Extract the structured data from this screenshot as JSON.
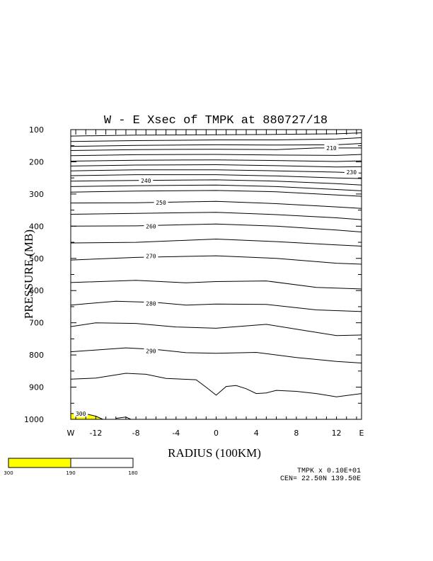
{
  "chart_data": {
    "type": "contour",
    "title": "W - E Xsec of TMPK at 880727/18",
    "xlabel": "RADIUS (100KM)",
    "ylabel": "PRESSURE (MB)",
    "xlim": [
      -14.5,
      14.5
    ],
    "ylim": [
      1000,
      100
    ],
    "x_ticks": [
      {
        "value": -14.5,
        "label": "W"
      },
      {
        "value": -12,
        "label": "-12"
      },
      {
        "value": -8,
        "label": "-8"
      },
      {
        "value": -4,
        "label": "-4"
      },
      {
        "value": 0,
        "label": "0"
      },
      {
        "value": 4,
        "label": "4"
      },
      {
        "value": 8,
        "label": "8"
      },
      {
        "value": 12,
        "label": "12"
      },
      {
        "value": 14.5,
        "label": "E"
      }
    ],
    "y_ticks": [
      100,
      200,
      300,
      400,
      500,
      600,
      700,
      800,
      900,
      1000
    ],
    "contours": [
      {
        "level": "",
        "points": [
          [
            -14.5,
            120
          ],
          [
            -8,
            117
          ],
          [
            0,
            116
          ],
          [
            6,
            115
          ],
          [
            12,
            113
          ],
          [
            14.5,
            110
          ]
        ]
      },
      {
        "level": "",
        "points": [
          [
            -14.5,
            137
          ],
          [
            -8,
            134
          ],
          [
            0,
            132
          ],
          [
            6,
            132
          ],
          [
            12,
            129
          ],
          [
            14.5,
            125
          ]
        ]
      },
      {
        "level": "",
        "points": [
          [
            -14.5,
            152
          ],
          [
            -8,
            149
          ],
          [
            0,
            147
          ],
          [
            6,
            148
          ],
          [
            12,
            147
          ],
          [
            14.5,
            143
          ]
        ]
      },
      {
        "level": "210",
        "label_at": [
          11.5,
          157
        ],
        "points": [
          [
            -14.5,
            165
          ],
          [
            -8,
            162
          ],
          [
            0,
            161
          ],
          [
            6,
            162
          ],
          [
            10,
            157
          ],
          [
            14.5,
            157
          ]
        ]
      },
      {
        "level": "",
        "points": [
          [
            -14.5,
            181
          ],
          [
            -8,
            178
          ],
          [
            0,
            177
          ],
          [
            6,
            179
          ],
          [
            12,
            180
          ],
          [
            14.5,
            177
          ]
        ]
      },
      {
        "level": "",
        "points": [
          [
            -14.5,
            198
          ],
          [
            -8,
            195
          ],
          [
            0,
            194
          ],
          [
            6,
            196
          ],
          [
            12,
            199
          ],
          [
            14.5,
            197
          ]
        ]
      },
      {
        "level": "",
        "points": [
          [
            -14.5,
            213
          ],
          [
            -8,
            210
          ],
          [
            0,
            209
          ],
          [
            6,
            212
          ],
          [
            12,
            216
          ],
          [
            14.5,
            215
          ]
        ]
      },
      {
        "level": "230",
        "label_at": [
          13.5,
          232
        ],
        "points": [
          [
            -14.5,
            228
          ],
          [
            -8,
            225
          ],
          [
            0,
            225
          ],
          [
            6,
            228
          ],
          [
            12,
            232
          ],
          [
            14.5,
            235
          ]
        ]
      },
      {
        "level": "",
        "points": [
          [
            -14.5,
            243
          ],
          [
            -8,
            240
          ],
          [
            0,
            240
          ],
          [
            6,
            244
          ],
          [
            12,
            250
          ],
          [
            14.5,
            252
          ]
        ]
      },
      {
        "level": "240",
        "label_at": [
          -7,
          258
        ],
        "points": [
          [
            -14.5,
            260
          ],
          [
            -8,
            258
          ],
          [
            0,
            256
          ],
          [
            6,
            260
          ],
          [
            12,
            268
          ],
          [
            14.5,
            272
          ]
        ]
      },
      {
        "level": "",
        "points": [
          [
            -14.5,
            277
          ],
          [
            -8,
            274
          ],
          [
            0,
            272
          ],
          [
            6,
            277
          ],
          [
            12,
            286
          ],
          [
            14.5,
            290
          ]
        ]
      },
      {
        "level": "",
        "points": [
          [
            -14.5,
            294
          ],
          [
            -8,
            291
          ],
          [
            0,
            289
          ],
          [
            6,
            293
          ],
          [
            12,
            303
          ],
          [
            14.5,
            307
          ]
        ]
      },
      {
        "level": "250",
        "label_at": [
          -5.5,
          327
        ],
        "points": [
          [
            -14.5,
            328
          ],
          [
            -8,
            327
          ],
          [
            0,
            323
          ],
          [
            6,
            330
          ],
          [
            12,
            340
          ],
          [
            14.5,
            345
          ]
        ]
      },
      {
        "level": "",
        "points": [
          [
            -14.5,
            363
          ],
          [
            -8,
            360
          ],
          [
            0,
            357
          ],
          [
            6,
            364
          ],
          [
            12,
            374
          ],
          [
            14.5,
            380
          ]
        ]
      },
      {
        "level": "260",
        "label_at": [
          -6.5,
          400
        ],
        "points": [
          [
            -14.5,
            400
          ],
          [
            -8,
            399
          ],
          [
            0,
            393
          ],
          [
            6,
            400
          ],
          [
            12,
            412
          ],
          [
            14.5,
            418
          ]
        ]
      },
      {
        "level": "",
        "points": [
          [
            -14.5,
            452
          ],
          [
            -8,
            450
          ],
          [
            0,
            440
          ],
          [
            6,
            448
          ],
          [
            12,
            458
          ],
          [
            14.5,
            462
          ]
        ]
      },
      {
        "level": "270",
        "label_at": [
          -6.5,
          493
        ],
        "points": [
          [
            -14.5,
            505
          ],
          [
            -8,
            497
          ],
          [
            0,
            492
          ],
          [
            6,
            500
          ],
          [
            12,
            515
          ],
          [
            14.5,
            518
          ]
        ]
      },
      {
        "level": "",
        "points": [
          [
            -14.5,
            575
          ],
          [
            -8,
            568
          ],
          [
            -3,
            576
          ],
          [
            0,
            572
          ],
          [
            5,
            570
          ],
          [
            10,
            590
          ],
          [
            14.5,
            595
          ]
        ]
      },
      {
        "level": "280",
        "label_at": [
          -6.5,
          640
        ],
        "points": [
          [
            -14.5,
            645
          ],
          [
            -10,
            633
          ],
          [
            -6,
            637
          ],
          [
            -3,
            645
          ],
          [
            0,
            642
          ],
          [
            5,
            643
          ],
          [
            10,
            660
          ],
          [
            14.5,
            665
          ]
        ]
      },
      {
        "level": "",
        "points": [
          [
            -14.5,
            712
          ],
          [
            -12,
            700
          ],
          [
            -8,
            702
          ],
          [
            -4,
            713
          ],
          [
            0,
            717
          ],
          [
            5,
            705
          ],
          [
            9,
            725
          ],
          [
            12,
            740
          ],
          [
            14.5,
            738
          ]
        ]
      },
      {
        "level": "290",
        "label_at": [
          -6.5,
          788
        ],
        "points": [
          [
            -14.5,
            790
          ],
          [
            -9,
            778
          ],
          [
            -6,
            783
          ],
          [
            -3,
            793
          ],
          [
            0,
            795
          ],
          [
            4,
            792
          ],
          [
            8,
            808
          ],
          [
            12,
            820
          ],
          [
            14.5,
            825
          ]
        ]
      },
      {
        "level": "",
        "points": [
          [
            -14.5,
            875
          ],
          [
            -12,
            872
          ],
          [
            -9,
            857
          ],
          [
            -7,
            860
          ],
          [
            -5,
            873
          ],
          [
            -2,
            877
          ],
          [
            -1,
            900
          ],
          [
            0,
            925
          ],
          [
            1,
            898
          ],
          [
            2,
            895
          ],
          [
            3,
            905
          ],
          [
            4,
            920
          ],
          [
            5,
            918
          ],
          [
            6,
            910
          ],
          [
            8,
            913
          ],
          [
            10,
            920
          ],
          [
            12,
            930
          ],
          [
            14.5,
            920
          ]
        ]
      },
      {
        "level": "300",
        "label_at": [
          -13.5,
          982
        ],
        "points": [
          [
            -14.5,
            982
          ],
          [
            -13,
            983
          ],
          [
            -12,
            990
          ],
          [
            -11.3,
            1000
          ]
        ]
      },
      {
        "level": "",
        "points": [
          [
            -10,
            997
          ],
          [
            -9,
            993
          ],
          [
            -8.5,
            1000
          ]
        ]
      }
    ],
    "colorbar": {
      "tick_labels": [
        "300",
        "190",
        "180"
      ],
      "color": "#ffff00"
    },
    "annotations": {
      "line1": "TMPK x  0.10E+01",
      "line2": "CEN= 22.50N  139.50E"
    }
  }
}
